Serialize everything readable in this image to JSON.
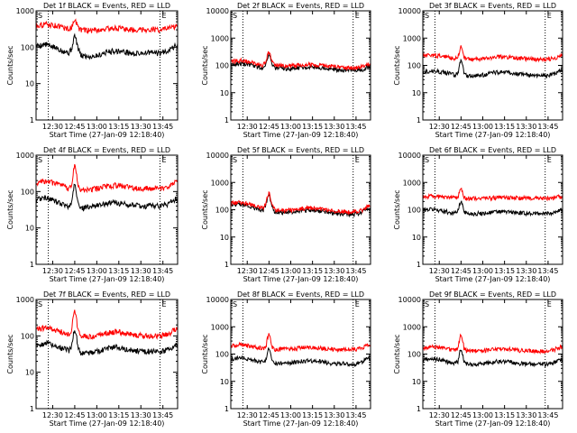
{
  "panel_common": {
    "ylabel": "Counts/sec",
    "xlabel": "Start Time (27-Jan-09 12:18:40)",
    "x_ticks": [
      "12:30",
      "12:45",
      "13:00",
      "13:15",
      "13:30",
      "13:45"
    ],
    "x_ticks_minutes": [
      30,
      45,
      60,
      75,
      90,
      105
    ],
    "xlim_minutes": [
      18.67,
      115
    ],
    "y_scale": "log",
    "vertical_markers_minutes": [
      27,
      103
    ],
    "s_marker": "S",
    "e_marker": "E"
  },
  "colors": {
    "events": "#000000",
    "lld": "#ff0000"
  },
  "chart_data": [
    {
      "type": "line",
      "title": "Det 1f BLACK = Events, RED = LLD",
      "x_unit": "minutes after 12:00",
      "y_ticks": [
        "1",
        "10",
        "100",
        "1000"
      ],
      "ylim": [
        1,
        1000
      ],
      "peak_minute": 45,
      "series": [
        {
          "name": "Events",
          "x": [
            19,
            25,
            31,
            37,
            41,
            43,
            45,
            47,
            49,
            55,
            61,
            67,
            73,
            79,
            85,
            91,
            97,
            103,
            109,
            114
          ],
          "y": [
            110,
            120,
            100,
            80,
            70,
            90,
            210,
            100,
            60,
            55,
            60,
            75,
            80,
            75,
            65,
            70,
            72,
            68,
            85,
            110
          ]
        },
        {
          "name": "LLD",
          "x": [
            19,
            25,
            31,
            37,
            41,
            43,
            45,
            47,
            49,
            55,
            61,
            67,
            73,
            79,
            85,
            91,
            97,
            103,
            109,
            114
          ],
          "y": [
            400,
            430,
            400,
            350,
            320,
            350,
            620,
            360,
            300,
            290,
            300,
            320,
            340,
            320,
            300,
            310,
            310,
            300,
            330,
            380
          ]
        }
      ]
    },
    {
      "type": "line",
      "title": "Det 2f BLACK = Events, RED = LLD",
      "x_unit": "minutes after 12:00",
      "y_ticks": [
        "1",
        "10",
        "100",
        "1000",
        "10000"
      ],
      "ylim": [
        1,
        10000
      ],
      "peak_minute": 45,
      "series": [
        {
          "name": "Events",
          "x": [
            19,
            25,
            31,
            37,
            41,
            43,
            45,
            47,
            49,
            55,
            61,
            67,
            73,
            79,
            85,
            91,
            97,
            103,
            109,
            114
          ],
          "y": [
            110,
            120,
            110,
            90,
            80,
            120,
            260,
            110,
            80,
            75,
            78,
            85,
            90,
            85,
            78,
            70,
            68,
            65,
            70,
            85
          ]
        },
        {
          "name": "LLD",
          "x": [
            19,
            25,
            31,
            37,
            41,
            43,
            45,
            47,
            49,
            55,
            61,
            67,
            73,
            79,
            85,
            91,
            97,
            103,
            109,
            114
          ],
          "y": [
            140,
            150,
            135,
            115,
            100,
            150,
            320,
            135,
            100,
            95,
            98,
            105,
            110,
            105,
            98,
            90,
            85,
            82,
            90,
            110
          ]
        }
      ]
    },
    {
      "type": "line",
      "title": "Det 3f BLACK = Events, RED = LLD",
      "x_unit": "minutes after 12:00",
      "y_ticks": [
        "1",
        "10",
        "100",
        "1000",
        "10000"
      ],
      "ylim": [
        1,
        10000
      ],
      "peak_minute": 45,
      "series": [
        {
          "name": "Events",
          "x": [
            19,
            25,
            31,
            37,
            41,
            43,
            45,
            47,
            49,
            55,
            61,
            67,
            73,
            79,
            85,
            91,
            97,
            103,
            109,
            114
          ],
          "y": [
            60,
            65,
            58,
            50,
            45,
            55,
            160,
            55,
            40,
            42,
            45,
            55,
            60,
            55,
            48,
            45,
            45,
            42,
            50,
            65
          ]
        },
        {
          "name": "LLD",
          "x": [
            19,
            25,
            31,
            37,
            41,
            43,
            45,
            47,
            49,
            55,
            61,
            67,
            73,
            79,
            85,
            91,
            97,
            103,
            109,
            114
          ],
          "y": [
            220,
            240,
            220,
            200,
            180,
            210,
            480,
            210,
            170,
            170,
            175,
            200,
            210,
            200,
            185,
            175,
            170,
            165,
            185,
            230
          ]
        }
      ]
    },
    {
      "type": "line",
      "title": "Det 4f BLACK = Events, RED = LLD",
      "x_unit": "minutes after 12:00",
      "y_ticks": [
        "1",
        "10",
        "100",
        "1000"
      ],
      "ylim": [
        1,
        1000
      ],
      "peak_minute": 45,
      "series": [
        {
          "name": "Events",
          "x": [
            19,
            25,
            31,
            37,
            41,
            43,
            45,
            47,
            49,
            55,
            61,
            67,
            73,
            79,
            85,
            91,
            97,
            103,
            109,
            114
          ],
          "y": [
            60,
            70,
            55,
            45,
            40,
            50,
            160,
            50,
            35,
            38,
            42,
            48,
            50,
            46,
            42,
            40,
            42,
            40,
            45,
            65
          ]
        },
        {
          "name": "LLD",
          "x": [
            19,
            25,
            31,
            37,
            41,
            43,
            45,
            47,
            49,
            55,
            61,
            67,
            73,
            79,
            85,
            91,
            97,
            103,
            109,
            114
          ],
          "y": [
            170,
            200,
            170,
            140,
            120,
            150,
            520,
            150,
            110,
            115,
            125,
            140,
            150,
            140,
            125,
            120,
            125,
            120,
            135,
            190
          ]
        }
      ]
    },
    {
      "type": "line",
      "title": "Det 5f BLACK = Events, RED = LLD",
      "x_unit": "minutes after 12:00",
      "y_ticks": [
        "1",
        "10",
        "100",
        "1000",
        "10000"
      ],
      "ylim": [
        1,
        10000
      ],
      "peak_minute": 45,
      "series": [
        {
          "name": "Events",
          "x": [
            19,
            25,
            31,
            37,
            41,
            43,
            45,
            47,
            49,
            55,
            61,
            67,
            73,
            79,
            85,
            91,
            97,
            103,
            109,
            114
          ],
          "y": [
            150,
            160,
            140,
            110,
            95,
            150,
            360,
            130,
            85,
            80,
            82,
            92,
            98,
            92,
            82,
            76,
            72,
            68,
            80,
            120
          ]
        },
        {
          "name": "LLD",
          "x": [
            19,
            25,
            31,
            37,
            41,
            43,
            45,
            47,
            49,
            55,
            61,
            67,
            73,
            79,
            85,
            91,
            97,
            103,
            109,
            114
          ],
          "y": [
            175,
            190,
            165,
            130,
            112,
            175,
            420,
            155,
            100,
            95,
            98,
            108,
            115,
            108,
            98,
            90,
            86,
            82,
            95,
            140
          ]
        }
      ]
    },
    {
      "type": "line",
      "title": "Det 6f BLACK = Events, RED = LLD",
      "x_unit": "minutes after 12:00",
      "y_ticks": [
        "1",
        "10",
        "100",
        "1000",
        "10000"
      ],
      "ylim": [
        1,
        10000
      ],
      "peak_minute": 45,
      "series": [
        {
          "name": "Events",
          "x": [
            19,
            25,
            31,
            37,
            41,
            43,
            45,
            47,
            49,
            55,
            61,
            67,
            73,
            79,
            85,
            91,
            97,
            103,
            109,
            114
          ],
          "y": [
            100,
            105,
            95,
            80,
            75,
            95,
            200,
            95,
            72,
            72,
            75,
            82,
            86,
            82,
            76,
            74,
            74,
            72,
            80,
            100
          ]
        },
        {
          "name": "LLD",
          "x": [
            19,
            25,
            31,
            37,
            41,
            43,
            45,
            47,
            49,
            55,
            61,
            67,
            73,
            79,
            85,
            91,
            97,
            103,
            109,
            114
          ],
          "y": [
            300,
            310,
            295,
            280,
            270,
            300,
            560,
            290,
            260,
            262,
            265,
            275,
            280,
            275,
            268,
            265,
            262,
            260,
            270,
            310
          ]
        }
      ]
    },
    {
      "type": "line",
      "title": "Det 7f BLACK = Events, RED = LLD",
      "x_unit": "minutes after 12:00",
      "y_ticks": [
        "1",
        "10",
        "100",
        "1000"
      ],
      "ylim": [
        1,
        1000
      ],
      "peak_minute": 45,
      "series": [
        {
          "name": "Events",
          "x": [
            19,
            25,
            31,
            37,
            41,
            43,
            45,
            47,
            49,
            55,
            61,
            67,
            73,
            79,
            85,
            91,
            97,
            103,
            109,
            114
          ],
          "y": [
            55,
            65,
            55,
            45,
            40,
            50,
            160,
            50,
            35,
            35,
            38,
            45,
            50,
            45,
            40,
            38,
            38,
            36,
            42,
            60
          ]
        },
        {
          "name": "LLD",
          "x": [
            19,
            25,
            31,
            37,
            41,
            43,
            45,
            47,
            49,
            55,
            61,
            67,
            73,
            79,
            85,
            91,
            97,
            103,
            109,
            114
          ],
          "y": [
            150,
            175,
            150,
            125,
            110,
            135,
            520,
            140,
            100,
            98,
            105,
            120,
            130,
            120,
            108,
            102,
            100,
            98,
            115,
            160
          ]
        }
      ]
    },
    {
      "type": "line",
      "title": "Det 8f BLACK = Events, RED = LLD",
      "x_unit": "minutes after 12:00",
      "y_ticks": [
        "1",
        "10",
        "100",
        "1000",
        "10000"
      ],
      "ylim": [
        1,
        10000
      ],
      "peak_minute": 45,
      "series": [
        {
          "name": "Events",
          "x": [
            19,
            25,
            31,
            37,
            41,
            43,
            45,
            47,
            49,
            55,
            61,
            67,
            73,
            79,
            85,
            91,
            97,
            103,
            109,
            114
          ],
          "y": [
            65,
            75,
            65,
            55,
            50,
            60,
            180,
            60,
            45,
            45,
            48,
            55,
            58,
            55,
            48,
            45,
            45,
            42,
            50,
            70
          ]
        },
        {
          "name": "LLD",
          "x": [
            19,
            25,
            31,
            37,
            41,
            43,
            45,
            47,
            49,
            55,
            61,
            67,
            73,
            79,
            85,
            91,
            97,
            103,
            109,
            114
          ],
          "y": [
            200,
            225,
            200,
            175,
            160,
            185,
            600,
            185,
            150,
            150,
            155,
            170,
            180,
            170,
            158,
            152,
            150,
            148,
            165,
            215
          ]
        }
      ]
    },
    {
      "type": "line",
      "title": "Det 9f BLACK = Events, RED = LLD",
      "x_unit": "minutes after 12:00",
      "y_ticks": [
        "1",
        "10",
        "100",
        "1000",
        "10000"
      ],
      "ylim": [
        1,
        10000
      ],
      "peak_minute": 45,
      "series": [
        {
          "name": "Events",
          "x": [
            19,
            25,
            31,
            37,
            41,
            43,
            45,
            47,
            49,
            55,
            61,
            67,
            73,
            79,
            85,
            91,
            97,
            103,
            109,
            114
          ],
          "y": [
            60,
            70,
            60,
            50,
            45,
            55,
            160,
            55,
            42,
            42,
            45,
            52,
            55,
            52,
            46,
            44,
            44,
            42,
            48,
            65
          ]
        },
        {
          "name": "LLD",
          "x": [
            19,
            25,
            31,
            37,
            41,
            43,
            45,
            47,
            49,
            55,
            61,
            67,
            73,
            79,
            85,
            91,
            97,
            103,
            109,
            114
          ],
          "y": [
            170,
            195,
            170,
            150,
            138,
            160,
            520,
            160,
            130,
            130,
            135,
            148,
            155,
            148,
            138,
            132,
            130,
            128,
            145,
            185
          ]
        }
      ]
    }
  ]
}
